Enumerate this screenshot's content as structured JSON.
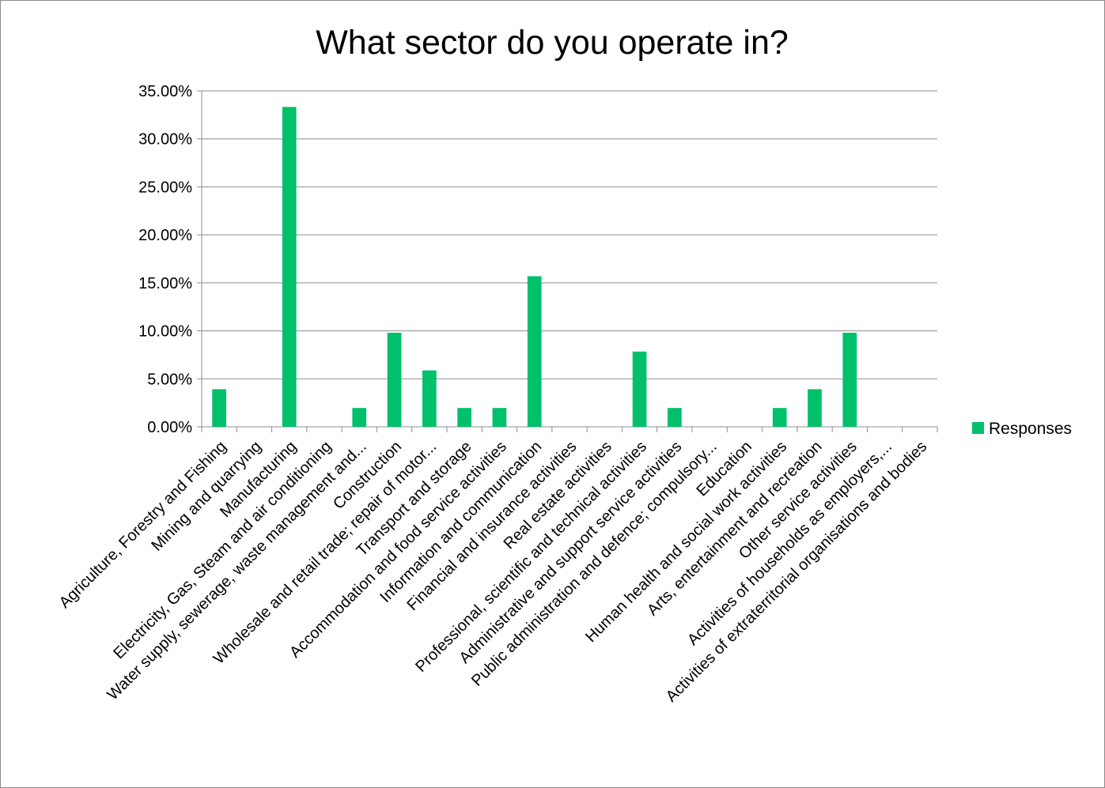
{
  "chart_data": {
    "type": "bar",
    "title": "What sector do you operate in?",
    "xlabel": "",
    "ylabel": "",
    "ylim": [
      0,
      0.35
    ],
    "y_ticks": [
      "0.00%",
      "5.00%",
      "10.00%",
      "15.00%",
      "20.00%",
      "25.00%",
      "30.00%",
      "35.00%"
    ],
    "grid": true,
    "legend_position": "right",
    "bar_color": "#00c06b",
    "categories": [
      "Agriculture, Forestry and Fishing",
      "Mining and quarrying",
      "Manufacturing",
      "Electricity, Gas, Steam and air conditioning",
      "Water supply, sewerage, waste management and...",
      "Construction",
      "Wholesale and retail trade; repair of motor...",
      "Transport and storage",
      "Accommodation and food service activities",
      "Information and communication",
      "Financial and insurance activities",
      "Real estate activities",
      "Professional, scientific and technical activities",
      "Administrative and support service activities",
      "Public administration and defence; compulsory...",
      "Education",
      "Human health and social work activities",
      "Arts, entertainment and recreation",
      "Other service activities",
      "Activities of households as employers,...",
      "Activities of extraterritorial organisations and bodies"
    ],
    "series": [
      {
        "name": "Responses",
        "values": [
          0.0392,
          0,
          0.3333,
          0,
          0.0196,
          0.098,
          0.0588,
          0.0196,
          0.0196,
          0.1569,
          0,
          0,
          0.0784,
          0.0196,
          0,
          0,
          0.0196,
          0.0392,
          0.098,
          0,
          0
        ]
      }
    ]
  }
}
